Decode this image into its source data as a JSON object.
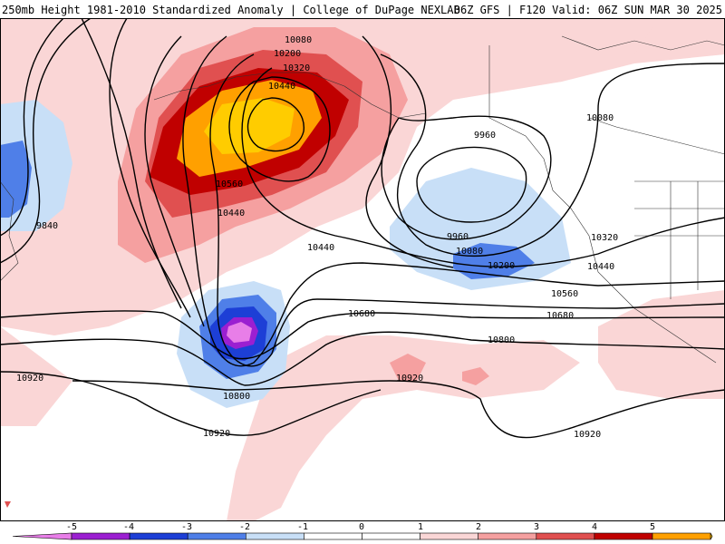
{
  "header": {
    "left": "250mb Height 1981-2010 Standardized Anomaly | College of DuPage NEXLAB",
    "right": "06Z GFS | F120 Valid: 06Z SUN MAR 30 2025"
  },
  "colors": {
    "neg5": "#e87ee8",
    "neg4": "#9b1fd1",
    "neg3": "#1d3fd6",
    "neg2": "#4f7fe8",
    "neg1": "#c8dff7",
    "pos1": "#fad6d6",
    "pos2": "#f5a0a0",
    "pos3": "#e05050",
    "pos4": "#c00000",
    "pos5": "#ffa000",
    "pos6": "#ffcc00"
  },
  "contour_labels": [
    "10080",
    "10200",
    "10320",
    "10440",
    "10560",
    "10440",
    "9840",
    "9960",
    "9960",
    "10080",
    "10200",
    "10080",
    "10320",
    "10440",
    "10440",
    "10560",
    "10680",
    "10680",
    "10800",
    "10800",
    "10920",
    "10920",
    "10920",
    "10920"
  ],
  "colorbar": {
    "ticks": [
      "-5",
      "-4",
      "-3",
      "-2",
      "-1",
      "0",
      "1",
      "2",
      "3",
      "4",
      "5"
    ]
  }
}
